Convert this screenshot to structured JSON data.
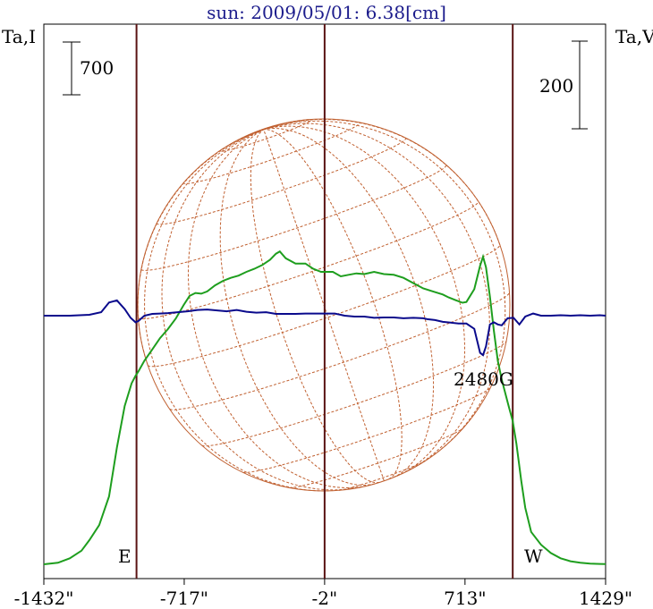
{
  "title": "sun: 2009/05/01: 6.38[cm]",
  "left_axis_label": "Ta,I",
  "right_axis_label": "Ta,V",
  "scale_left_label": "700",
  "scale_right_label": "200",
  "marker_east": "E",
  "marker_west": "W",
  "annotation": "2480G",
  "colors": {
    "intensity": "#1e9e1e",
    "polarization": "#0a0a8c",
    "grid": "#c06030",
    "limb_lines": "#5a1414",
    "title": "#1c1c8c"
  },
  "chart_data": {
    "type": "line",
    "xlim": [
      -1432,
      1429
    ],
    "tick_labels": [
      "-1432\"",
      "-717\"",
      "-2\"",
      "713\"",
      "1429\""
    ],
    "tick_values": [
      -1432,
      -717,
      -2,
      713,
      1429
    ],
    "vertical_lines": [
      -960,
      -2,
      956
    ],
    "series": [
      {
        "name": "I",
        "x": [
          -1432,
          -1360,
          -1300,
          -1240,
          -1200,
          -1150,
          -1100,
          -1060,
          -1020,
          -985,
          -965,
          -950,
          -920,
          -880,
          -840,
          -800,
          -760,
          -720,
          -690,
          -660,
          -630,
          -600,
          -560,
          -520,
          -480,
          -440,
          -400,
          -360,
          -320,
          -280,
          -250,
          -230,
          -200,
          -150,
          -100,
          -60,
          -20,
          40,
          80,
          120,
          160,
          200,
          250,
          300,
          350,
          400,
          450,
          500,
          550,
          600,
          630,
          660,
          700,
          720,
          760,
          790,
          805,
          820,
          840,
          860,
          880,
          900,
          915,
          935,
          956,
          975,
          1000,
          1020,
          1050,
          1100,
          1150,
          1200,
          1250,
          1300,
          1350,
          1400,
          1429
        ],
        "values": [
          0,
          20,
          80,
          180,
          320,
          520,
          900,
          1550,
          2100,
          2400,
          2500,
          2560,
          2700,
          2850,
          3000,
          3120,
          3260,
          3440,
          3560,
          3600,
          3590,
          3620,
          3700,
          3760,
          3800,
          3830,
          3880,
          3920,
          3970,
          4040,
          4120,
          4150,
          4060,
          3990,
          3990,
          3920,
          3880,
          3880,
          3820,
          3840,
          3860,
          3850,
          3880,
          3850,
          3840,
          3800,
          3730,
          3660,
          3620,
          3580,
          3540,
          3510,
          3470,
          3480,
          3650,
          3960,
          4080,
          3940,
          3550,
          3100,
          2700,
          2450,
          2300,
          2100,
          1900,
          1600,
          1100,
          750,
          430,
          260,
          150,
          80,
          40,
          20,
          10,
          5,
          3
        ]
      },
      {
        "name": "V",
        "x": [
          -1432,
          -1300,
          -1200,
          -1140,
          -1100,
          -1060,
          -1020,
          -990,
          -965,
          -950,
          -920,
          -880,
          -840,
          -800,
          -750,
          -700,
          -650,
          -600,
          -550,
          -500,
          -450,
          -400,
          -350,
          -300,
          -250,
          -200,
          -150,
          -100,
          -50,
          0,
          50,
          100,
          150,
          200,
          250,
          300,
          350,
          400,
          450,
          500,
          520,
          560,
          600,
          640,
          680,
          720,
          760,
          790,
          805,
          820,
          840,
          860,
          880,
          900,
          930,
          960,
          990,
          1020,
          1060,
          1100,
          1150,
          1200,
          1250,
          1300,
          1350,
          1400,
          1429
        ],
        "values": [
          0,
          0,
          2,
          8,
          30,
          35,
          15,
          -5,
          -15,
          -12,
          0,
          4,
          5,
          6,
          8,
          10,
          13,
          14,
          12,
          10,
          13,
          9,
          7,
          8,
          4,
          4,
          4,
          5,
          5,
          5,
          5,
          0,
          -2,
          -2,
          -5,
          -4,
          -4,
          -6,
          -5,
          -6,
          -8,
          -10,
          -14,
          -16,
          -18,
          -18,
          -30,
          -85,
          -90,
          -70,
          -20,
          -15,
          -20,
          -22,
          -6,
          -5,
          -20,
          -2,
          5,
          0,
          0,
          1,
          0,
          1,
          0,
          1,
          0
        ]
      }
    ]
  }
}
